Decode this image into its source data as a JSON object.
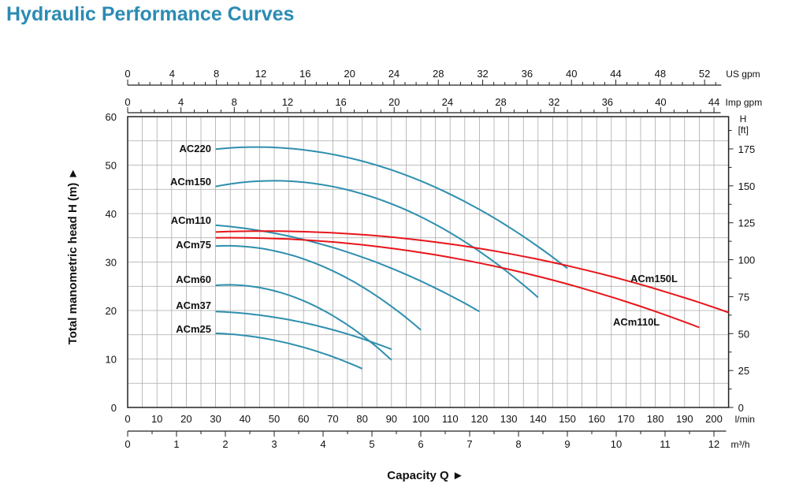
{
  "chart_data": {
    "type": "line",
    "title": "Hydraulic Performance Curves",
    "xlabel": "Capacity Q",
    "ylabel": "Total manometric head H (m)",
    "right_axis_label": "H [ft]",
    "xlim": [
      0,
      205
    ],
    "ylim": [
      0,
      60
    ],
    "grid": true,
    "x_unit": "l/min",
    "x_ticks": [
      0,
      10,
      20,
      30,
      40,
      50,
      60,
      70,
      80,
      90,
      100,
      110,
      120,
      130,
      140,
      150,
      160,
      170,
      180,
      190,
      200
    ],
    "y_ticks": [
      0,
      10,
      20,
      30,
      40,
      50,
      60
    ],
    "ft_ticks": [
      0,
      25,
      50,
      75,
      100,
      125,
      150,
      175
    ],
    "ft_label_1": "H",
    "ft_label_2": "[ft]",
    "us_gpm": {
      "label": "US gpm",
      "ticks": [
        0,
        4,
        8,
        12,
        16,
        20,
        24,
        28,
        32,
        36,
        40,
        44,
        48,
        52
      ]
    },
    "imp_gpm": {
      "label": "Imp gpm",
      "ticks": [
        0,
        4,
        8,
        12,
        16,
        20,
        24,
        28,
        32,
        36,
        40,
        44
      ]
    },
    "m3h": {
      "label": "m³/h",
      "ticks": [
        0,
        1,
        2,
        3,
        4,
        5,
        6,
        7,
        8,
        9,
        10,
        11,
        12
      ]
    },
    "series": [
      {
        "name": "AC220",
        "color": "#2e8fae",
        "x": [
          30,
          90,
          150
        ],
        "y": [
          53.3,
          49,
          28.7
        ]
      },
      {
        "name": "ACm150",
        "color": "#2e8fae",
        "x": [
          30,
          90,
          140
        ],
        "y": [
          45.6,
          42,
          22.7
        ]
      },
      {
        "name": "ACm110",
        "color": "#2e8fae",
        "x": [
          30,
          70,
          120
        ],
        "y": [
          37.6,
          33,
          19.8
        ]
      },
      {
        "name": "ACm75",
        "color": "#2e8fae",
        "x": [
          30,
          65,
          100
        ],
        "y": [
          33.3,
          29.5,
          16
        ]
      },
      {
        "name": "ACm60",
        "color": "#2e8fae",
        "x": [
          30,
          60,
          90
        ],
        "y": [
          25.2,
          22,
          9.8
        ]
      },
      {
        "name": "ACm37",
        "color": "#2e8fae",
        "x": [
          30,
          60,
          90
        ],
        "y": [
          19.8,
          17.5,
          12
        ]
      },
      {
        "name": "ACm25",
        "color": "#2e8fae",
        "x": [
          30,
          55,
          80
        ],
        "y": [
          15.3,
          13.2,
          8
        ]
      },
      {
        "name": "ACm150L",
        "color": "#e8151b",
        "x": [
          30,
          120,
          205
        ],
        "y": [
          36.2,
          32.8,
          19.6
        ]
      },
      {
        "name": "ACm110L",
        "color": "#e8151b",
        "x": [
          30,
          120,
          195
        ],
        "y": [
          35,
          29.8,
          16.5
        ]
      }
    ]
  }
}
